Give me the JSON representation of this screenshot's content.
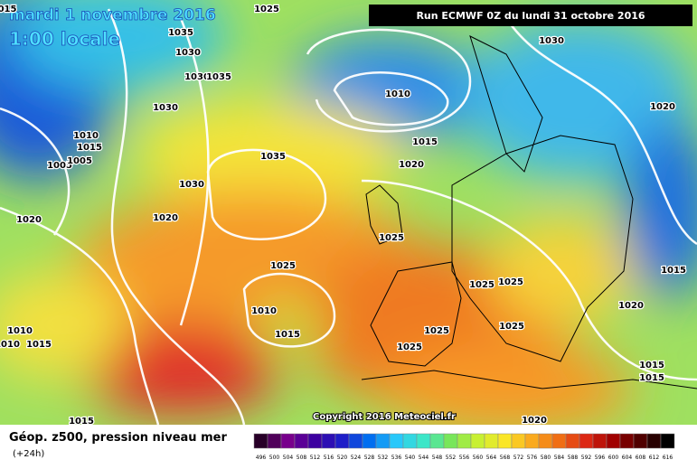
{
  "header": {
    "date": "mardi 1 novembre 2016",
    "time": "1:00 locale",
    "run": "Run ECMWF 0Z du lundi 31 octobre 2016"
  },
  "copyright": "Copyright 2016 Meteociel.fr",
  "footer": {
    "title": "Géop. z500, pression niveau mer",
    "lead": "(+24h)"
  },
  "isobar_labels": [
    "015",
    "1025",
    "1035",
    "1030",
    "1030",
    "1035",
    "1030",
    "1010",
    "1030",
    "1015",
    "1020",
    "1010",
    "1015",
    "1005",
    "1005",
    "1035",
    "1020",
    "1030",
    "1020",
    "1020",
    "1025",
    "1025",
    "1015",
    "1025",
    "1025",
    "1020",
    "1010",
    "1015",
    "1010",
    "1010",
    "1015",
    "1025",
    "1025",
    "1025",
    "1015",
    "1015",
    "1020",
    "1015"
  ],
  "scale_labels": [
    "496",
    "500",
    "504",
    "508",
    "512",
    "516",
    "520",
    "524",
    "528",
    "532",
    "536",
    "540",
    "544",
    "548",
    "552",
    "556",
    "560",
    "564",
    "568",
    "572",
    "576",
    "580",
    "584",
    "588",
    "592",
    "596",
    "600",
    "604",
    "608",
    "612",
    "616"
  ]
}
